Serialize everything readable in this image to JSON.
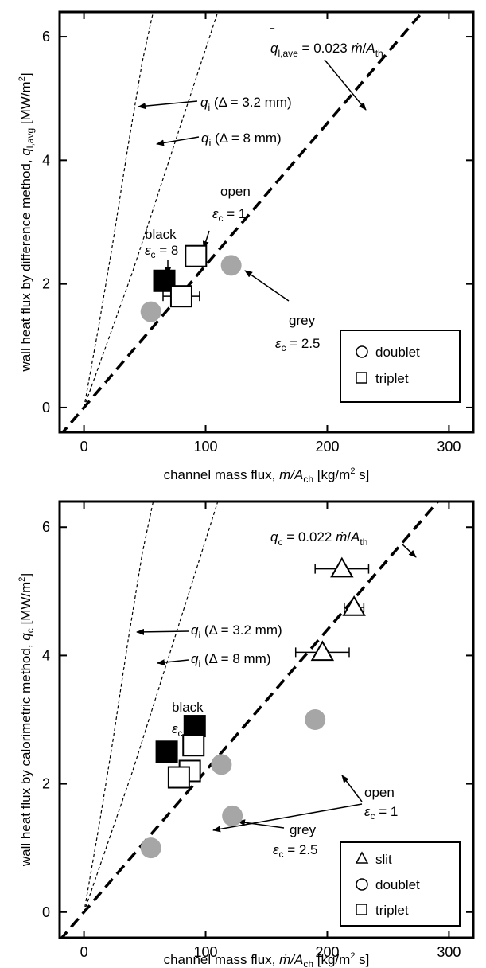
{
  "chart_data": [
    {
      "type": "scatter",
      "xlabel": "channel mass flux, ṁ/A_ch [kg/m² s]",
      "xlabel_parts": {
        "prefix": "channel mass flux, ",
        "mdot": "ṁ",
        "slash_A": "/A",
        "ch": "ch",
        "bracket": " [kg/m",
        "sq": "2",
        "tail": " s]"
      },
      "ylabel": "wall heat flux by difference method, q̄_l,avg [MW/m²]",
      "ylabel_parts": {
        "prefix": "wall heat flux by difference method, ",
        "q": "q",
        "sub": "l,avg",
        "bracket": " [MW/m",
        "sq": "2",
        "tail": "]"
      },
      "xlim": [
        -20,
        320
      ],
      "ylim": [
        -0.4,
        6.4
      ],
      "x_ticks": [
        0,
        100,
        200,
        300
      ],
      "x_tick_labels": [
        "0",
        "100",
        "200",
        "300"
      ],
      "y_ticks": [
        0,
        2,
        4,
        6
      ],
      "y_tick_labels": [
        "0",
        "2",
        "4",
        "6"
      ],
      "legend_position": "bottom-right",
      "legend": [
        {
          "marker": "circle",
          "label": "doublet"
        },
        {
          "marker": "square",
          "label": "triplet"
        }
      ],
      "fit_line": {
        "slope": 0.023,
        "label": {
          "q": "q",
          "sub": "l,ave",
          "eq": " = 0.023 ",
          "mdot": "ṁ",
          "slash": "/",
          "A": "A",
          "th": "th"
        }
      },
      "curves": [
        {
          "label": {
            "q": "q",
            "sub": "i",
            "delta": " (Δ = 3.2 mm)"
          },
          "x": [
            0,
            12,
            24,
            36,
            48,
            58
          ],
          "y": [
            0,
            1.3,
            2.7,
            4.2,
            5.6,
            6.5
          ]
        },
        {
          "label": {
            "q": "q",
            "sub": "i",
            "delta": " (Δ = 8   mm)"
          },
          "x": [
            0,
            20,
            40,
            60,
            80,
            100,
            110
          ],
          "y": [
            0,
            1.1,
            2.2,
            3.4,
            4.6,
            5.8,
            6.4
          ]
        }
      ],
      "series": [
        {
          "name": "doublet",
          "marker": "circle",
          "color": "#a6a6a6",
          "x": [
            55,
            121
          ],
          "y": [
            1.55,
            2.3
          ]
        },
        {
          "name": "triplet",
          "marker": "square",
          "points": [
            {
              "x": 66,
              "y": 2.05,
              "color": "#000000",
              "xerr": 6
            },
            {
              "x": 92,
              "y": 2.45,
              "color": "#ffffff",
              "xerr": 7
            },
            {
              "x": 80,
              "y": 1.8,
              "color": "#ffffff",
              "xerr": 15
            }
          ]
        }
      ],
      "annotations": [
        {
          "lines": [
            "open",
            "ε_c = 1"
          ],
          "l1": "open",
          "eps": "ε",
          "c": "c",
          "val": " = 1"
        },
        {
          "lines": [
            "black",
            "ε_c = 8"
          ],
          "l1": "black",
          "eps": "ε",
          "c": "c",
          "val": " = 8"
        },
        {
          "lines": [
            "grey",
            "ε_c = 2.5"
          ],
          "l1": "grey",
          "eps": "ε",
          "c": "c",
          "val": " = 2.5"
        }
      ]
    },
    {
      "type": "scatter",
      "xlabel": "channel mass flux, ṁ/A_ch [kg/m² s]",
      "xlabel_parts": {
        "prefix": "channel mass flux, ",
        "mdot": "ṁ",
        "slash_A": "/A",
        "ch": "ch",
        "bracket": " [kg/m",
        "sq": "2",
        "tail": " s]"
      },
      "ylabel": "wall heat flux by calorimetric method, q̄_c [MW/m²]",
      "ylabel_parts": {
        "prefix": "wall heat flux by calorimetric method, ",
        "q": "q",
        "sub": "c",
        "bracket": " [MW/m",
        "sq": "2",
        "tail": "]"
      },
      "xlim": [
        -20,
        320
      ],
      "ylim": [
        -0.4,
        6.4
      ],
      "x_ticks": [
        0,
        100,
        200,
        300
      ],
      "x_tick_labels": [
        "0",
        "100",
        "200",
        "300"
      ],
      "y_ticks": [
        0,
        2,
        4,
        6
      ],
      "y_tick_labels": [
        "0",
        "2",
        "4",
        "6"
      ],
      "legend_position": "bottom-right",
      "legend": [
        {
          "marker": "triangle",
          "label": "slit"
        },
        {
          "marker": "circle",
          "label": "doublet"
        },
        {
          "marker": "square",
          "label": "triplet"
        }
      ],
      "fit_line": {
        "slope": 0.022,
        "label": {
          "q": "q",
          "sub": "c",
          "eq": " = 0.022 ",
          "mdot": "ṁ",
          "slash": "/",
          "A": "A",
          "th": "th"
        }
      },
      "curves": [
        {
          "label": {
            "q": "q",
            "sub": "i",
            "delta": " (Δ = 3.2 mm)"
          },
          "x": [
            0,
            12,
            24,
            36,
            48,
            58
          ],
          "y": [
            0,
            1.3,
            2.7,
            4.2,
            5.6,
            6.5
          ]
        },
        {
          "label": {
            "q": "q",
            "sub": "i",
            "delta": " (Δ = 8 mm)"
          },
          "x": [
            0,
            20,
            40,
            60,
            80,
            100,
            110
          ],
          "y": [
            0,
            1.1,
            2.2,
            3.4,
            4.6,
            5.8,
            6.4
          ]
        }
      ],
      "series": [
        {
          "name": "slit",
          "marker": "triangle",
          "points": [
            {
              "x": 212,
              "y": 5.35,
              "xerr": 22
            },
            {
              "x": 222,
              "y": 4.75,
              "xerr": 8
            },
            {
              "x": 196,
              "y": 4.05,
              "xerr": 22
            }
          ]
        },
        {
          "name": "doublet",
          "marker": "circle",
          "color": "#a6a6a6",
          "x": [
            190,
            113,
            122,
            55
          ],
          "y": [
            3.0,
            2.3,
            1.5,
            1.0
          ]
        },
        {
          "name": "triplet",
          "marker": "square",
          "points": [
            {
              "x": 91,
              "y": 2.9,
              "color": "#000000",
              "xerr": 6
            },
            {
              "x": 68,
              "y": 2.5,
              "color": "#000000",
              "xerr": 6
            },
            {
              "x": 90,
              "y": 2.6,
              "color": "#ffffff",
              "xerr": 6
            },
            {
              "x": 87,
              "y": 2.2,
              "color": "#ffffff",
              "xerr": 6
            },
            {
              "x": 78,
              "y": 2.1,
              "color": "#ffffff",
              "xerr": 6
            }
          ]
        }
      ],
      "annotations": [
        {
          "lines": [
            "open",
            "ε_c = 1"
          ],
          "l1": "open",
          "eps": "ε",
          "c": "c",
          "val": " = 1"
        },
        {
          "lines": [
            "black",
            "ε_c = 8"
          ],
          "l1": "black",
          "eps": "ε",
          "c": "c",
          "val": " = 8"
        },
        {
          "lines": [
            "grey",
            "ε_c = 2.5"
          ],
          "l1": "grey",
          "eps": "ε",
          "c": "c",
          "val": " = 2.5"
        }
      ]
    }
  ]
}
